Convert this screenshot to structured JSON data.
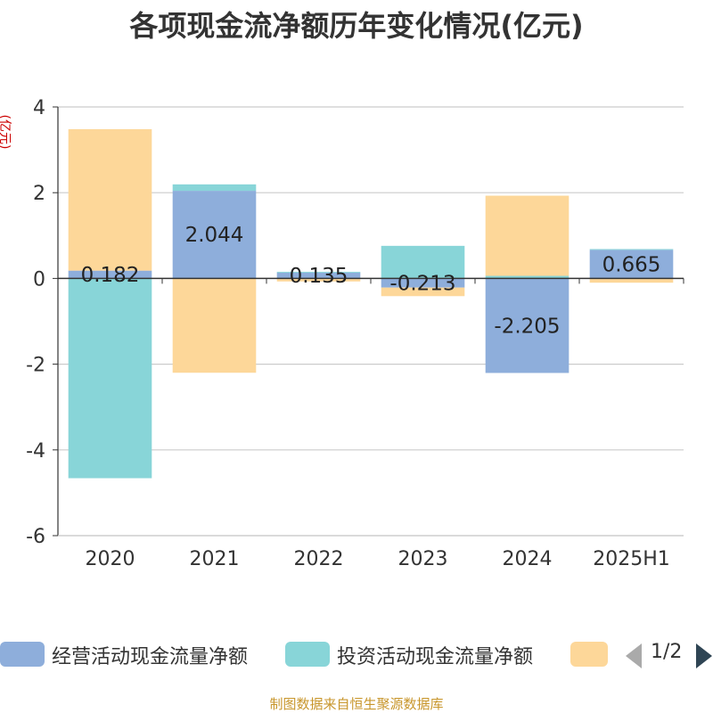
{
  "chart_data": {
    "type": "bar",
    "stacked": true,
    "title": "各项现金流净额历年变化情况(亿元)",
    "ylabel": "(亿元)",
    "ylim": [
      -6,
      4
    ],
    "yticks": [
      4,
      2,
      0,
      -2,
      -4,
      -6
    ],
    "grid": true,
    "categories": [
      "2020",
      "2021",
      "2022",
      "2023",
      "2024",
      "2025H1"
    ],
    "series": [
      {
        "name": "经营活动现金流量净额",
        "color": "#8eaedb",
        "values": [
          0.182,
          2.044,
          0.135,
          -0.213,
          -2.205,
          0.665
        ],
        "labels": [
          "0.182",
          "2.044",
          "0.135",
          "-0.213",
          "-2.205",
          "0.665"
        ]
      },
      {
        "name": "投资活动现金流量净额",
        "color": "#88d5d8",
        "values": [
          -4.66,
          0.15,
          0.02,
          0.76,
          0.06,
          0.02
        ]
      },
      {
        "name": "",
        "color": "#fdd799",
        "values": [
          3.3,
          -2.2,
          -0.07,
          -0.2,
          1.87,
          -0.1
        ]
      }
    ],
    "legend": {
      "position": "bottom",
      "page": "1/2"
    }
  },
  "source_note": "制图数据来自恒生聚源数据库"
}
